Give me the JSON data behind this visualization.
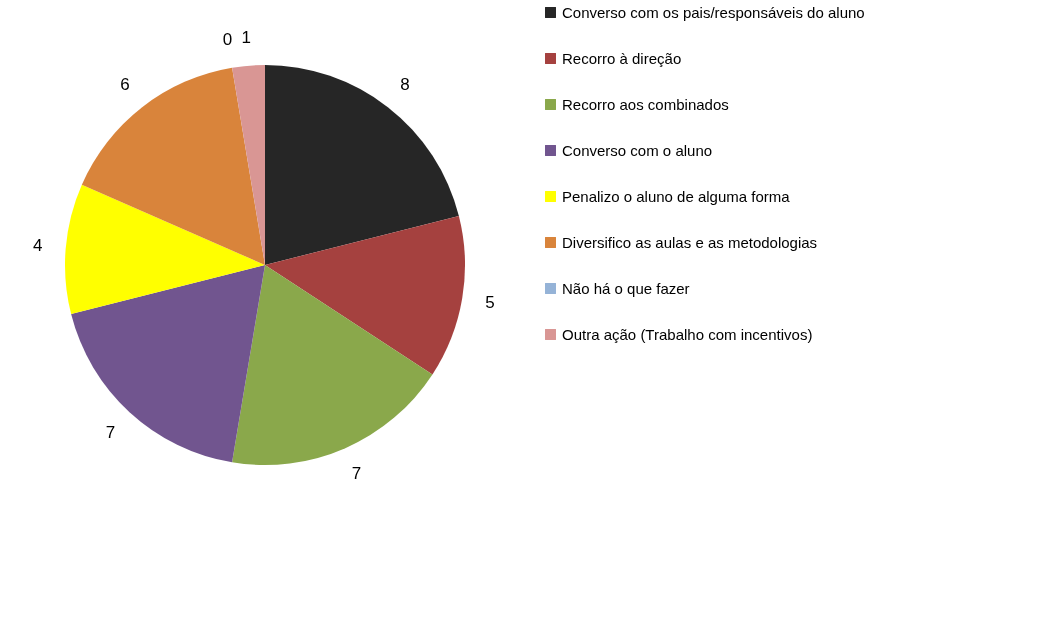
{
  "chart_data": {
    "type": "pie",
    "categories": [
      "Converso com os pais/responsáveis do aluno",
      "Recorro à direção",
      "Recorro aos combinados",
      "Converso com o aluno",
      "Penalizo o aluno de alguma forma",
      "Diversifico as aulas e as metodologias",
      "Não há o que fazer",
      "Outra ação (Trabalho com incentivos)"
    ],
    "values": [
      8,
      5,
      7,
      7,
      4,
      6,
      0,
      1
    ],
    "colors": [
      "#262626",
      "#a5413f",
      "#8aa84b",
      "#71558f",
      "#ffff00",
      "#d9843b",
      "#95b3d7",
      "#d99694"
    ],
    "value_labels": [
      "8",
      "5",
      "7",
      "7",
      "4",
      "6",
      "0",
      "1"
    ],
    "legend": "right"
  }
}
